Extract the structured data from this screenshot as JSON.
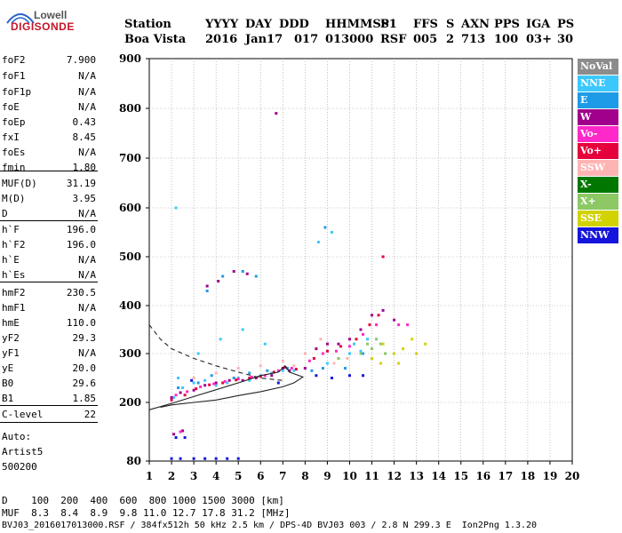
{
  "logo": {
    "top": "Lowell",
    "main": "DIGISONDE"
  },
  "header": {
    "labels": [
      "Station",
      "YYYY",
      "DAY",
      "DDD",
      "HHMMSS",
      "P1",
      "FFS",
      "S",
      "AXN",
      "PPS",
      "IGA",
      "PS"
    ],
    "values": [
      "Boa Vista",
      "2016",
      "Jan17",
      "017",
      "013000",
      "RSF",
      "005",
      "2",
      "713",
      "100",
      "03+",
      "30"
    ]
  },
  "params": [
    {
      "name": "foF2",
      "value": "7.900"
    },
    {
      "name": "foF1",
      "value": "N/A"
    },
    {
      "name": "foF1p",
      "value": "N/A"
    },
    {
      "name": "foE",
      "value": "N/A"
    },
    {
      "name": "foEp",
      "value": "0.43"
    },
    {
      "name": "fxI",
      "value": "8.45"
    },
    {
      "name": "foEs",
      "value": "N/A"
    },
    {
      "name": "fmin",
      "value": "1.80"
    },
    {
      "name": "MUF(D)",
      "value": "31.19"
    },
    {
      "name": "M(D)",
      "value": "3.95"
    },
    {
      "name": "D",
      "value": "N/A"
    },
    {
      "name": "h`F",
      "value": "196.0"
    },
    {
      "name": "h`F2",
      "value": "196.0"
    },
    {
      "name": "h`E",
      "value": "N/A"
    },
    {
      "name": "h`Es",
      "value": "N/A"
    },
    {
      "name": "hmF2",
      "value": "230.5"
    },
    {
      "name": "hmF1",
      "value": "N/A"
    },
    {
      "name": "hmE",
      "value": "110.0"
    },
    {
      "name": "yF2",
      "value": "29.3"
    },
    {
      "name": "yF1",
      "value": "N/A"
    },
    {
      "name": "yE",
      "value": "20.0"
    },
    {
      "name": "B0",
      "value": "29.6"
    },
    {
      "name": "B1",
      "value": "1.85"
    },
    {
      "name": "C-level",
      "value": "22"
    }
  ],
  "auto": {
    "label": "Auto:",
    "artist": "Artist5",
    "version": "500200"
  },
  "legend": [
    {
      "label": "NoVal",
      "color": "#8c8c8c"
    },
    {
      "label": "NNE",
      "color": "#3cc8ff"
    },
    {
      "label": "E",
      "color": "#1e9be6"
    },
    {
      "label": "W",
      "color": "#a0008c"
    },
    {
      "label": "Vo-",
      "color": "#ff28c8"
    },
    {
      "label": "Vo+",
      "color": "#e6003c"
    },
    {
      "label": "SSW",
      "color": "#ffb4b4"
    },
    {
      "label": "X-",
      "color": "#007800"
    },
    {
      "label": "X+",
      "color": "#8cc864"
    },
    {
      "label": "SSE",
      "color": "#d2d200"
    },
    {
      "label": "NNW",
      "color": "#1414dc"
    }
  ],
  "footer": {
    "d_row": "D    100  200  400  600  800 1000 1500 3000 [km]",
    "muf_row": "MUF  8.3  8.4  8.9  9.8 11.0 12.7 17.8 31.2 [MHz]",
    "info": "BVJ03_2016017013000.RSF / 384fx512h 50 kHz 2.5 km / DPS-4D BVJ03 003 / 2.8 N 299.3 E  Ion2Png 1.3.20"
  },
  "chart_data": {
    "type": "scatter",
    "title": "",
    "xlabel": "",
    "ylabel": "",
    "xlim": [
      1,
      20
    ],
    "ylim": [
      80,
      900
    ],
    "x_ticks": [
      1,
      2,
      3,
      4,
      5,
      6,
      7,
      8,
      9,
      10,
      11,
      12,
      13,
      14,
      15,
      16,
      17,
      18,
      19,
      20
    ],
    "y_ticks": [
      80,
      200,
      300,
      400,
      500,
      600,
      700,
      800,
      900
    ],
    "grid": true,
    "legend_position": "right",
    "series": [
      {
        "name": "NNE",
        "points": [
          [
            2.1,
            210
          ],
          [
            2.5,
            230
          ],
          [
            3.0,
            240
          ],
          [
            3.5,
            245
          ],
          [
            4.0,
            235
          ],
          [
            4.5,
            240
          ],
          [
            5.0,
            250
          ],
          [
            5.5,
            245
          ],
          [
            6.0,
            255
          ],
          [
            6.5,
            260
          ],
          [
            7.0,
            265
          ],
          [
            7.5,
            265
          ],
          [
            8.0,
            270
          ],
          [
            9.0,
            280
          ],
          [
            9.5,
            290
          ],
          [
            10.0,
            300
          ],
          [
            10.5,
            305
          ],
          [
            2.2,
            600
          ],
          [
            2.3,
            250
          ],
          [
            3.2,
            300
          ],
          [
            4.2,
            330
          ],
          [
            5.2,
            350
          ],
          [
            6.2,
            320
          ],
          [
            9.2,
            550
          ],
          [
            8.6,
            530
          ],
          [
            10.2,
            320
          ],
          [
            10.8,
            330
          ]
        ]
      },
      {
        "name": "E",
        "points": [
          [
            2.3,
            230
          ],
          [
            3.2,
            240
          ],
          [
            3.8,
            255
          ],
          [
            4.8,
            250
          ],
          [
            5.5,
            260
          ],
          [
            6.3,
            265
          ],
          [
            7.2,
            270
          ],
          [
            8.3,
            265
          ],
          [
            8.8,
            270
          ],
          [
            9.8,
            270
          ],
          [
            10.6,
            300
          ],
          [
            3.6,
            430
          ],
          [
            4.3,
            460
          ],
          [
            5.2,
            470
          ],
          [
            5.8,
            460
          ],
          [
            8.9,
            560
          ]
        ]
      },
      {
        "name": "W",
        "points": [
          [
            2.0,
            210
          ],
          [
            2.4,
            220
          ],
          [
            3.0,
            225
          ],
          [
            3.5,
            235
          ],
          [
            4.0,
            240
          ],
          [
            4.6,
            245
          ],
          [
            5.2,
            245
          ],
          [
            5.8,
            250
          ],
          [
            6.5,
            255
          ],
          [
            7.0,
            270
          ],
          [
            7.3,
            265
          ],
          [
            8.0,
            270
          ],
          [
            8.5,
            310
          ],
          [
            9.0,
            320
          ],
          [
            9.5,
            320
          ],
          [
            10.0,
            330
          ],
          [
            10.5,
            350
          ],
          [
            11.0,
            380
          ],
          [
            11.5,
            390
          ],
          [
            12.0,
            370
          ],
          [
            2.1,
            135
          ],
          [
            2.5,
            142
          ],
          [
            6.7,
            790
          ],
          [
            3.6,
            440
          ],
          [
            4.1,
            450
          ],
          [
            4.8,
            470
          ],
          [
            5.4,
            465
          ]
        ]
      },
      {
        "name": "Vo-",
        "points": [
          [
            2.2,
            215
          ],
          [
            2.7,
            222
          ],
          [
            3.3,
            232
          ],
          [
            3.9,
            238
          ],
          [
            4.4,
            243
          ],
          [
            5.0,
            248
          ],
          [
            5.6,
            252
          ],
          [
            6.2,
            255
          ],
          [
            6.8,
            265
          ],
          [
            7.4,
            270
          ],
          [
            8.2,
            285
          ],
          [
            8.8,
            300
          ],
          [
            9.4,
            305
          ],
          [
            10.0,
            315
          ],
          [
            10.6,
            340
          ],
          [
            11.2,
            360
          ],
          [
            12.2,
            360
          ],
          [
            12.6,
            360
          ],
          [
            2.4,
            140
          ]
        ]
      },
      {
        "name": "Vo+",
        "points": [
          [
            2.0,
            205
          ],
          [
            2.6,
            215
          ],
          [
            3.1,
            228
          ],
          [
            3.7,
            236
          ],
          [
            4.3,
            240
          ],
          [
            4.9,
            246
          ],
          [
            5.5,
            250
          ],
          [
            6.0,
            253
          ],
          [
            6.6,
            262
          ],
          [
            7.1,
            272
          ],
          [
            7.6,
            268
          ],
          [
            8.4,
            290
          ],
          [
            9.0,
            305
          ],
          [
            9.6,
            315
          ],
          [
            10.3,
            330
          ],
          [
            10.9,
            360
          ],
          [
            11.3,
            380
          ],
          [
            11.5,
            500
          ]
        ]
      },
      {
        "name": "SSW",
        "points": [
          [
            3.0,
            250
          ],
          [
            4.0,
            260
          ],
          [
            5.0,
            270
          ],
          [
            6.0,
            275
          ],
          [
            7.0,
            285
          ],
          [
            7.5,
            275
          ],
          [
            8.0,
            300
          ],
          [
            8.7,
            330
          ],
          [
            9.3,
            280
          ],
          [
            9.9,
            290
          ]
        ]
      },
      {
        "name": "X+",
        "points": [
          [
            9.5,
            290
          ],
          [
            10.5,
            300
          ],
          [
            11.0,
            310
          ],
          [
            11.4,
            320
          ],
          [
            11.6,
            300
          ],
          [
            11.2,
            330
          ],
          [
            10.8,
            320
          ]
        ]
      },
      {
        "name": "SSE",
        "points": [
          [
            11.0,
            290
          ],
          [
            11.5,
            320
          ],
          [
            12.0,
            300
          ],
          [
            12.4,
            310
          ],
          [
            12.8,
            330
          ],
          [
            13.0,
            300
          ],
          [
            13.4,
            320
          ],
          [
            12.2,
            280
          ],
          [
            11.4,
            280
          ]
        ]
      },
      {
        "name": "NNW",
        "points": [
          [
            2.0,
            85
          ],
          [
            2.4,
            85
          ],
          [
            3.0,
            85
          ],
          [
            3.5,
            85
          ],
          [
            4.0,
            85
          ],
          [
            4.5,
            85
          ],
          [
            5.0,
            85
          ],
          [
            2.2,
            128
          ],
          [
            2.6,
            128
          ],
          [
            2.9,
            245
          ],
          [
            6.8,
            240
          ],
          [
            8.5,
            255
          ],
          [
            9.2,
            250
          ],
          [
            10.0,
            255
          ],
          [
            10.6,
            255
          ]
        ]
      }
    ],
    "curves": [
      {
        "name": "profile",
        "style": "solid",
        "points": [
          [
            1.0,
            185
          ],
          [
            2.0,
            198
          ],
          [
            3.0,
            212
          ],
          [
            4.0,
            226
          ],
          [
            5.0,
            240
          ],
          [
            6.0,
            255
          ],
          [
            6.8,
            262
          ],
          [
            7.1,
            275
          ],
          [
            7.3,
            262
          ],
          [
            7.9,
            252
          ],
          [
            7.5,
            240
          ],
          [
            7.0,
            232
          ],
          [
            6.0,
            222
          ],
          [
            5.0,
            214
          ],
          [
            4.0,
            205
          ],
          [
            3.0,
            200
          ],
          [
            2.0,
            195
          ],
          [
            1.5,
            190
          ]
        ]
      },
      {
        "name": "extrapolation",
        "style": "dashed",
        "points": [
          [
            1.0,
            360
          ],
          [
            1.5,
            330
          ],
          [
            2.0,
            310
          ],
          [
            3.0,
            290
          ],
          [
            4.0,
            275
          ],
          [
            5.0,
            262
          ],
          [
            6.0,
            250
          ],
          [
            7.0,
            245
          ]
        ]
      }
    ]
  }
}
